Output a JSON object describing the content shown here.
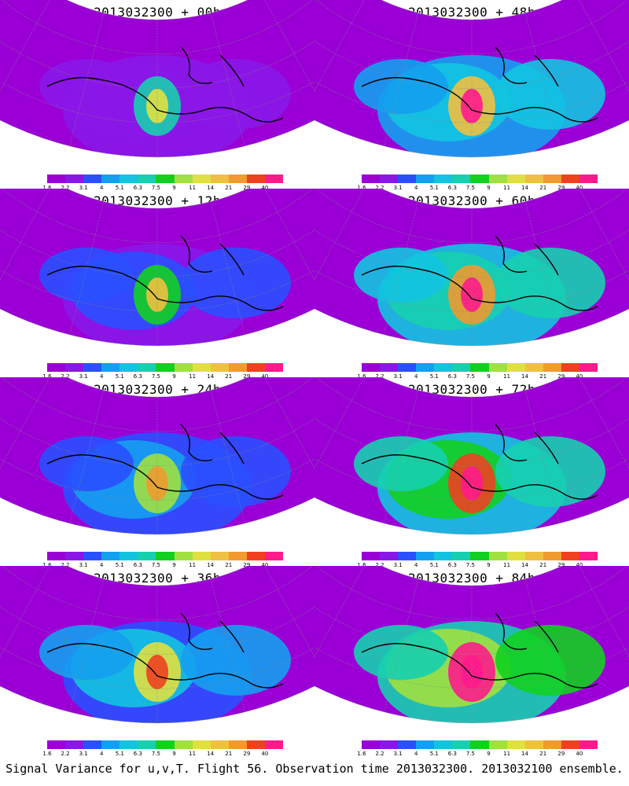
{
  "panels": [
    {
      "title": "2013032300 + 00h",
      "intensity": 0.15
    },
    {
      "title": "2013032300 + 48h",
      "intensity": 0.55
    },
    {
      "title": "2013032300 + 12h",
      "intensity": 0.25
    },
    {
      "title": "2013032300 + 60h",
      "intensity": 0.7
    },
    {
      "title": "2013032300 + 24h",
      "intensity": 0.35
    },
    {
      "title": "2013032300 + 72h",
      "intensity": 0.8
    },
    {
      "title": "2013032300 + 36h",
      "intensity": 0.45
    },
    {
      "title": "2013032300 + 84h",
      "intensity": 0.9
    }
  ],
  "colorbar": {
    "labels": [
      "1.6",
      "2.2",
      "3.1",
      "4",
      "5.1",
      "6.3",
      "7.5",
      "9",
      "11",
      "14",
      "21",
      "29",
      "40"
    ],
    "colors": [
      "#9a00d6",
      "#8a16e8",
      "#2a4fff",
      "#14a0f0",
      "#12c4e0",
      "#16d0b0",
      "#12d020",
      "#a0e040",
      "#e0e040",
      "#f0c040",
      "#f09a30",
      "#f04020",
      "#ff1a8c"
    ]
  },
  "caption": "Signal Variance for u,v,T. Flight 56. Observation time 2013032300. 2013032100 ensemble."
}
